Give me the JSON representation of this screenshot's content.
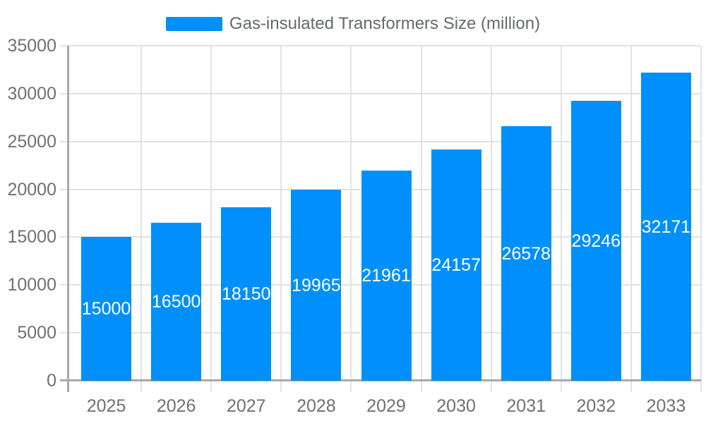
{
  "legend": {
    "label": "Gas-insulated Transformers Size (million)",
    "swatch_color": "#008FFB"
  },
  "chart_data": {
    "type": "bar",
    "title": "Gas-insulated Transformers Size (million)",
    "categories": [
      "2025",
      "2026",
      "2027",
      "2028",
      "2029",
      "2030",
      "2031",
      "2032",
      "2033"
    ],
    "series": [
      {
        "name": "Gas-insulated Transformers Size (million)",
        "values": [
          15000,
          16500,
          18150,
          19965,
          21961,
          24157,
          26578,
          29246,
          32171
        ]
      }
    ],
    "xlabel": "",
    "ylabel": "",
    "ylim": [
      0,
      35000
    ],
    "ytick_step": 5000,
    "ytick_labels": [
      "0",
      "5000",
      "10000",
      "15000",
      "20000",
      "25000",
      "30000",
      "35000"
    ],
    "data_labels": "inside-center-white",
    "grid": "horizontal-and-vertical",
    "legend_position": "top-center",
    "colors": {
      "bar": "#008FFB",
      "gridline": "#e3e3e3",
      "axis_line": "#a9a9a9",
      "axis_label_text": "#6e7173",
      "legend_text": "#666a6c",
      "data_label_text": "#ffffff",
      "background": "#ffffff"
    }
  }
}
